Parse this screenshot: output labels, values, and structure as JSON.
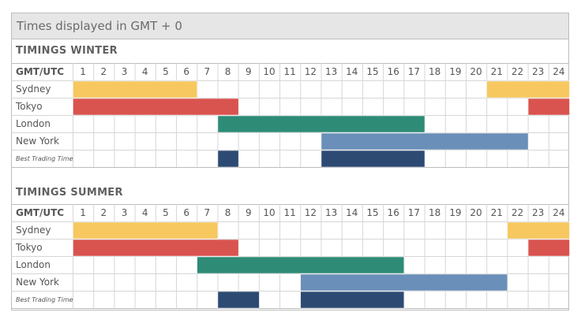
{
  "header_title": "Times displayed in GMT + 0",
  "chart_data": [
    {
      "type": "gantt",
      "title": "TIMINGS WINTER",
      "header_label": "GMT/UTC",
      "hours": [
        "1",
        "2",
        "3",
        "4",
        "5",
        "6",
        "7",
        "8",
        "9",
        "10",
        "11",
        "12",
        "13",
        "14",
        "15",
        "16",
        "17",
        "18",
        "19",
        "20",
        "21",
        "22",
        "23",
        "24"
      ],
      "rows": [
        {
          "label": "Sydney",
          "color": "#f6c85f",
          "spans": [
            [
              1,
              6
            ],
            [
              21,
              24
            ]
          ]
        },
        {
          "label": "Tokyo",
          "color": "#d9534f",
          "spans": [
            [
              1,
              8
            ],
            [
              23,
              24
            ]
          ]
        },
        {
          "label": "London",
          "color": "#2e8b76",
          "spans": [
            [
              8,
              17
            ]
          ]
        },
        {
          "label": "New York",
          "color": "#6a8fb8",
          "spans": [
            [
              13,
              22
            ]
          ]
        },
        {
          "label": "Best Trading Time",
          "color": "#2d4a73",
          "spans": [
            [
              8,
              8
            ],
            [
              13,
              17
            ]
          ]
        }
      ]
    },
    {
      "type": "gantt",
      "title": "TIMINGS SUMMER",
      "header_label": "GMT/UTC",
      "hours": [
        "1",
        "2",
        "3",
        "4",
        "5",
        "6",
        "7",
        "8",
        "9",
        "10",
        "11",
        "12",
        "13",
        "14",
        "15",
        "16",
        "17",
        "18",
        "19",
        "20",
        "21",
        "22",
        "23",
        "24"
      ],
      "rows": [
        {
          "label": "Sydney",
          "color": "#f6c85f",
          "spans": [
            [
              1,
              7
            ],
            [
              22,
              24
            ]
          ]
        },
        {
          "label": "Tokyo",
          "color": "#d9534f",
          "spans": [
            [
              1,
              8
            ],
            [
              23,
              24
            ]
          ]
        },
        {
          "label": "London",
          "color": "#2e8b76",
          "spans": [
            [
              7,
              16
            ]
          ]
        },
        {
          "label": "New York",
          "color": "#6a8fb8",
          "spans": [
            [
              12,
              21
            ]
          ]
        },
        {
          "label": "Best Trading Time",
          "color": "#2d4a73",
          "spans": [
            [
              8,
              9
            ],
            [
              12,
              16
            ]
          ]
        }
      ]
    }
  ]
}
